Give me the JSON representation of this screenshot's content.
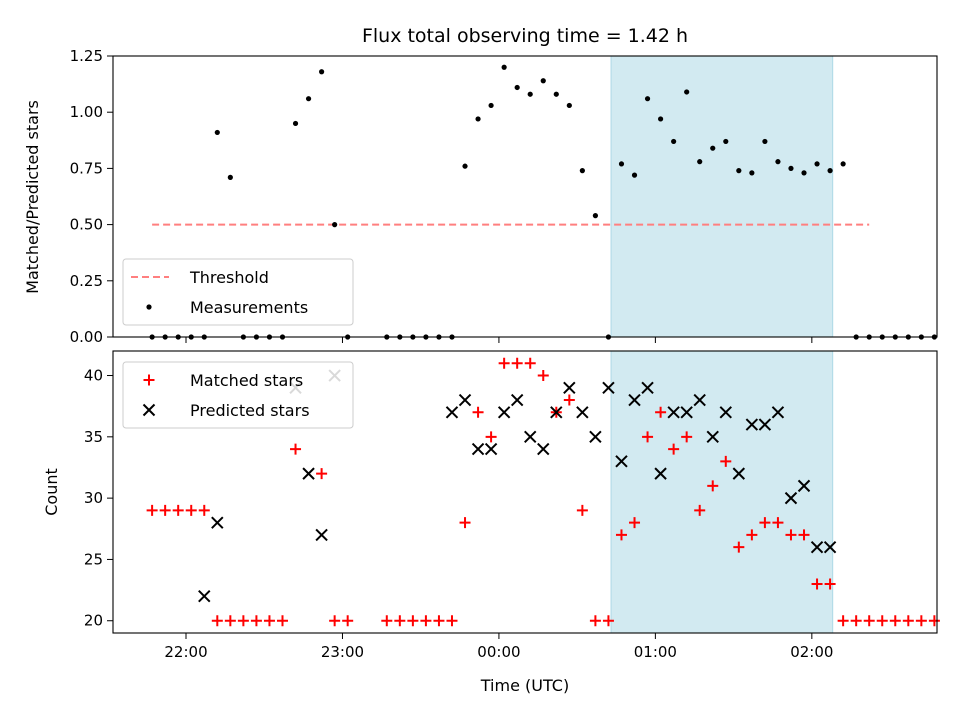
{
  "chart_data": [
    {
      "type": "scatter",
      "title": "Flux total observing time = 1.42 h",
      "xlabel": "",
      "ylabel": "Matched/Predicted stars",
      "xlim": [
        "21:32",
        "02:48"
      ],
      "ylim": [
        0,
        1.25
      ],
      "yticks": [
        "0.00",
        "0.25",
        "0.50",
        "0.75",
        "1.00",
        "1.25"
      ],
      "shaded_span": [
        "00:43",
        "02:08"
      ],
      "shade_color": "#add8e6",
      "legend": {
        "placement": "lower-left",
        "entries": [
          "Threshold",
          "Measurements"
        ]
      },
      "series": [
        {
          "name": "Threshold",
          "style": "dashed-line",
          "color": "#ff7f7f",
          "x": [
            "21:47",
            "02:22"
          ],
          "y": [
            0.5,
            0.5
          ]
        },
        {
          "name": "Measurements",
          "style": "dot",
          "color": "#000000",
          "x": [
            "21:47",
            "21:52",
            "21:57",
            "22:02",
            "22:07",
            "22:12",
            "22:17",
            "22:22",
            "22:27",
            "22:32",
            "22:37",
            "22:42",
            "22:47",
            "22:52",
            "22:57",
            "23:02",
            "23:17",
            "23:22",
            "23:27",
            "23:32",
            "23:37",
            "23:42",
            "23:47",
            "23:52",
            "23:57",
            "00:02",
            "00:07",
            "00:12",
            "00:17",
            "00:22",
            "00:27",
            "00:32",
            "00:37",
            "00:42",
            "00:47",
            "00:52",
            "00:57",
            "01:02",
            "01:07",
            "01:12",
            "01:17",
            "01:22",
            "01:27",
            "01:32",
            "01:37",
            "01:42",
            "01:47",
            "01:52",
            "01:57",
            "02:02",
            "02:07",
            "02:12",
            "02:17",
            "02:22",
            "02:27",
            "02:32",
            "02:37",
            "02:42",
            "02:47"
          ],
          "y": [
            0.0,
            0.0,
            0.0,
            0.0,
            0.0,
            0.91,
            0.71,
            0.0,
            0.0,
            0.0,
            0.0,
            0.95,
            1.06,
            1.18,
            0.5,
            0.0,
            0.0,
            0.0,
            0.0,
            0.0,
            0.0,
            0.0,
            0.76,
            0.97,
            1.03,
            1.2,
            1.11,
            1.08,
            1.14,
            1.08,
            1.03,
            0.74,
            0.54,
            0.0,
            0.77,
            0.72,
            1.06,
            0.97,
            0.87,
            1.09,
            0.78,
            0.84,
            0.87,
            0.74,
            0.73,
            0.87,
            0.78,
            0.75,
            0.73,
            0.77,
            0.74,
            0.77,
            0.0,
            0.0,
            0.0,
            0.0,
            0.0,
            0.0,
            0.0
          ]
        }
      ]
    },
    {
      "type": "scatter",
      "title": "",
      "xlabel": "Time (UTC)",
      "ylabel": "Count",
      "xlim": [
        "21:32",
        "02:48"
      ],
      "ylim": [
        19,
        42
      ],
      "yticks": [
        "20",
        "25",
        "30",
        "35",
        "40"
      ],
      "xticks": [
        "22:00",
        "23:00",
        "00:00",
        "01:00",
        "02:00"
      ],
      "shaded_span": [
        "00:43",
        "02:08"
      ],
      "shade_color": "#add8e6",
      "legend": {
        "placement": "upper-left",
        "entries": [
          "Matched stars",
          "Predicted stars"
        ]
      },
      "series": [
        {
          "name": "Matched stars",
          "style": "plus",
          "color": "#ff0000",
          "x": [
            "21:47",
            "21:52",
            "21:57",
            "22:02",
            "22:07",
            "22:12",
            "22:17",
            "22:22",
            "22:27",
            "22:32",
            "22:37",
            "22:42",
            "22:52",
            "22:57",
            "23:02",
            "23:17",
            "23:22",
            "23:27",
            "23:32",
            "23:37",
            "23:42",
            "23:47",
            "23:52",
            "23:57",
            "00:02",
            "00:07",
            "00:12",
            "00:17",
            "00:22",
            "00:27",
            "00:32",
            "00:37",
            "00:42",
            "00:47",
            "00:52",
            "00:57",
            "01:02",
            "01:07",
            "01:12",
            "01:17",
            "01:22",
            "01:27",
            "01:32",
            "01:37",
            "01:42",
            "01:47",
            "01:52",
            "01:57",
            "02:02",
            "02:07",
            "02:12",
            "02:17",
            "02:22",
            "02:27",
            "02:32",
            "02:37",
            "02:42",
            "02:47"
          ],
          "y": [
            29,
            29,
            29,
            29,
            29,
            20,
            20,
            20,
            20,
            20,
            20,
            34,
            32,
            20,
            20,
            20,
            20,
            20,
            20,
            20,
            20,
            28,
            37,
            35,
            41,
            41,
            41,
            40,
            37,
            38,
            29,
            20,
            20,
            27,
            28,
            35,
            37,
            34,
            35,
            29,
            31,
            33,
            26,
            27,
            28,
            28,
            27,
            27,
            23,
            23,
            20,
            20,
            20,
            20,
            20,
            20,
            20,
            20
          ]
        },
        {
          "name": "Predicted stars",
          "style": "x",
          "color": "#000000",
          "x": [
            "22:07",
            "22:12",
            "22:42",
            "22:47",
            "22:52",
            "22:57",
            "23:42",
            "23:47",
            "23:52",
            "23:57",
            "00:02",
            "00:07",
            "00:12",
            "00:17",
            "00:22",
            "00:27",
            "00:32",
            "00:37",
            "00:42",
            "00:47",
            "00:52",
            "00:57",
            "01:02",
            "01:07",
            "01:12",
            "01:17",
            "01:22",
            "01:27",
            "01:32",
            "01:37",
            "01:42",
            "01:47",
            "01:52",
            "01:57",
            "02:02",
            "02:07"
          ],
          "y": [
            22,
            28,
            39,
            32,
            27,
            40,
            37,
            38,
            34,
            34,
            37,
            38,
            35,
            34,
            37,
            39,
            37,
            35,
            39,
            33,
            38,
            39,
            32,
            37,
            37,
            38,
            35,
            37,
            32,
            36,
            36,
            37,
            30,
            31,
            26,
            26
          ]
        }
      ]
    }
  ]
}
